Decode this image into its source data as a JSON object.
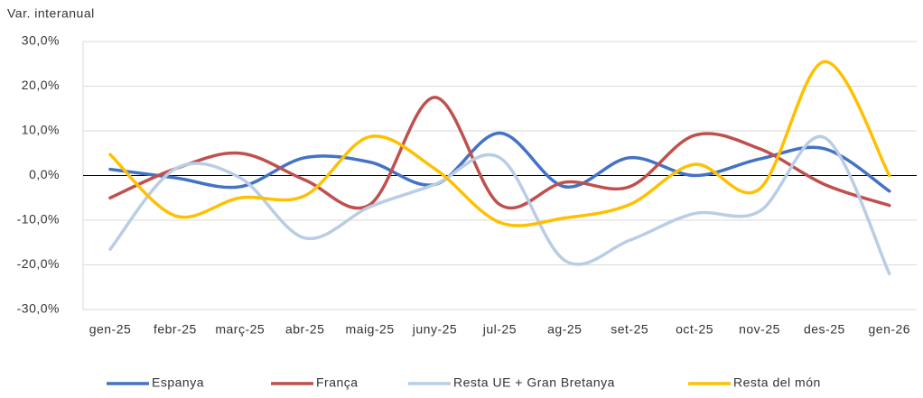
{
  "chart_data": {
    "type": "line",
    "title": "Var. interanual",
    "categories": [
      "gen-25",
      "febr-25",
      "març-25",
      "abr-25",
      "maig-25",
      "juny-25",
      "jul-25",
      "ag-25",
      "set-25",
      "oct-25",
      "nov-25",
      "des-25",
      "gen-26"
    ],
    "series": [
      {
        "name": "Espanya",
        "color": "#4472c4",
        "values": [
          1.4,
          -0.5,
          -2.5,
          4,
          3,
          -2,
          9.5,
          -2.5,
          4,
          0,
          3.7,
          6,
          -3.5
        ]
      },
      {
        "name": "França",
        "color": "#c0504d",
        "values": [
          -5,
          1.5,
          5,
          -1,
          -6.5,
          17.5,
          -6.5,
          -1.5,
          -2.5,
          9,
          6,
          -2,
          -6.7
        ]
      },
      {
        "name": "Resta UE + Gran Bretanya",
        "color": "#b9cde5",
        "values": [
          -16.5,
          1.5,
          -0.5,
          -14,
          -7,
          -2,
          4,
          -19,
          -14.5,
          -8.5,
          -8,
          8.5,
          -22
        ]
      },
      {
        "name": "Resta del món",
        "color": "#ffc000",
        "values": [
          4.7,
          -9,
          -5,
          -4.5,
          8.7,
          1.5,
          -10.5,
          -9.5,
          -6.5,
          2.5,
          -3,
          25.5,
          0
        ]
      }
    ],
    "ylim": [
      -30,
      30
    ],
    "yticks": [
      {
        "value": -30,
        "label": "-30,0%"
      },
      {
        "value": -20,
        "label": "-20,0%"
      },
      {
        "value": -10,
        "label": "-10,0%"
      },
      {
        "value": 0,
        "label": "0,0%"
      },
      {
        "value": 10,
        "label": "10,0%"
      },
      {
        "value": 20,
        "label": "20,0%"
      },
      {
        "value": 30,
        "label": "30,0%"
      }
    ],
    "grid": true,
    "legend": "bottom"
  }
}
